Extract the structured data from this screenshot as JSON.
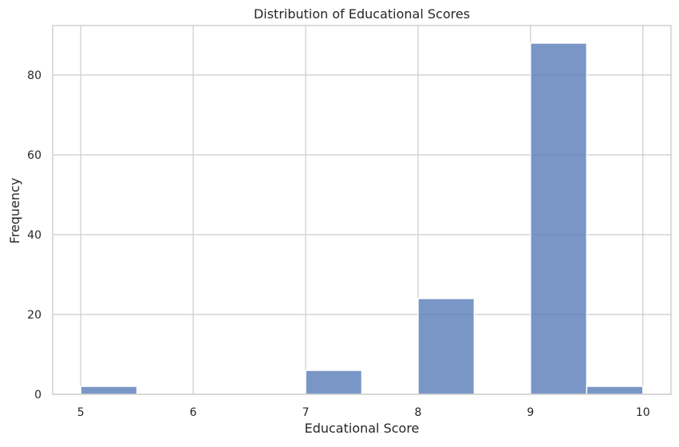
{
  "chart_data": {
    "type": "bar",
    "title": "Distribution of Educational Scores",
    "xlabel": "Educational Score",
    "ylabel": "Frequency",
    "xlim": [
      4.75,
      10.25
    ],
    "ylim": [
      0,
      92.4
    ],
    "x_ticks": [
      5,
      6,
      7,
      8,
      9,
      10
    ],
    "x_tick_labels": [
      "5",
      "6",
      "7",
      "8",
      "9",
      "10"
    ],
    "y_ticks": [
      0,
      20,
      40,
      60,
      80
    ],
    "y_tick_labels": [
      "0",
      "20",
      "40",
      "60",
      "80"
    ],
    "bins": [
      {
        "x0": 5.0,
        "x1": 5.5,
        "count": 2
      },
      {
        "x0": 5.5,
        "x1": 6.0,
        "count": 0
      },
      {
        "x0": 6.0,
        "x1": 6.5,
        "count": 0
      },
      {
        "x0": 6.5,
        "x1": 7.0,
        "count": 0
      },
      {
        "x0": 7.0,
        "x1": 7.5,
        "count": 6
      },
      {
        "x0": 7.5,
        "x1": 8.0,
        "count": 0
      },
      {
        "x0": 8.0,
        "x1": 8.5,
        "count": 24
      },
      {
        "x0": 8.5,
        "x1": 9.0,
        "count": 0
      },
      {
        "x0": 9.0,
        "x1": 9.5,
        "count": 88
      },
      {
        "x0": 9.5,
        "x1": 10.0,
        "count": 2
      }
    ],
    "grid": true,
    "colors": {
      "bar_fill": "#5b7fba",
      "bar_edge": "#ffffff",
      "grid": "#cccccc",
      "spine": "#cccccc",
      "text": "#262626"
    }
  }
}
